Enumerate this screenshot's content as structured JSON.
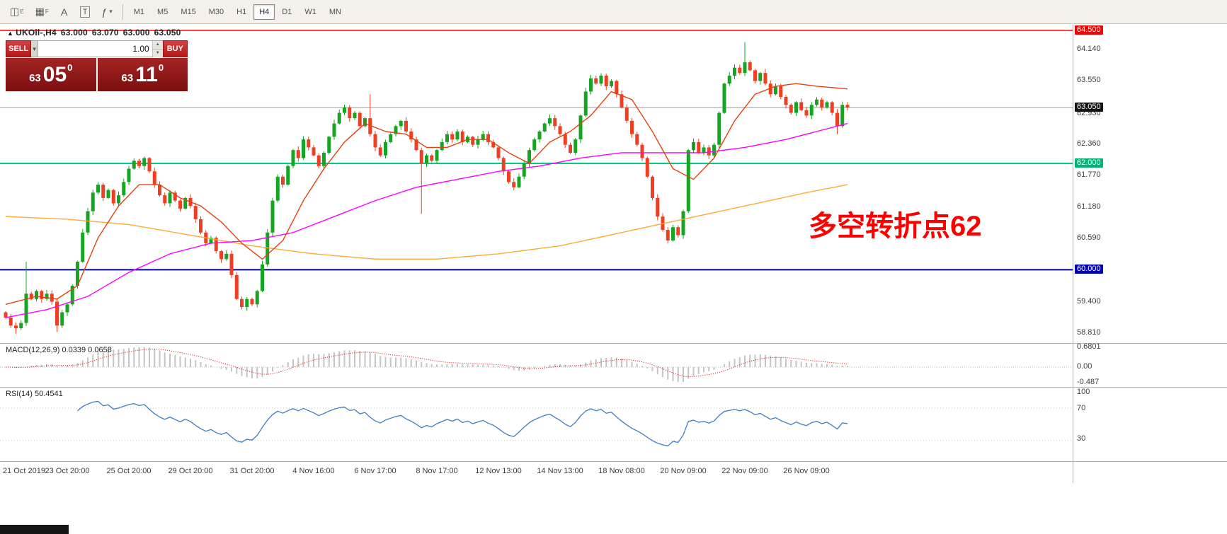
{
  "toolbar": {
    "tools": [
      {
        "name": "chart-window-icon",
        "glyph": "◫",
        "sub": "E"
      },
      {
        "name": "chart-grid-icon",
        "glyph": "▦",
        "sub": "F"
      },
      {
        "name": "text-label-tool-icon",
        "glyph": "A"
      },
      {
        "name": "text-box-tool-icon",
        "glyph": "T",
        "boxed": true
      },
      {
        "name": "indicators-menu-icon",
        "glyph": "ƒ",
        "arrow": "▾"
      }
    ],
    "timeframes": [
      "M1",
      "M5",
      "M15",
      "M30",
      "H1",
      "H4",
      "D1",
      "W1",
      "MN"
    ],
    "active_timeframe": "H4"
  },
  "chart_header": {
    "direction_glyph": "▲",
    "symbol": "UKOil-,H4",
    "open": "63.000",
    "high": "63.070",
    "low": "63.000",
    "close": "63.050"
  },
  "trade_panel": {
    "sell_label": "SELL",
    "buy_label": "BUY",
    "lot": "1.00",
    "dropdown_glyph": "▼",
    "spin_up": "▲",
    "spin_down": "▼",
    "bid": {
      "prefix": "63",
      "big": "05",
      "sup": "0"
    },
    "ask": {
      "prefix": "63",
      "big": "11",
      "sup": "0"
    }
  },
  "annotation": {
    "text": "多空转折点62",
    "color": "#ff0000"
  },
  "price_scale": [
    {
      "text": "64.140",
      "price": 64.14
    },
    {
      "text": "63.550",
      "price": 63.55
    },
    {
      "text": "62.930",
      "price": 62.93
    },
    {
      "text": "62.360",
      "price": 62.36
    },
    {
      "text": "61.770",
      "price": 61.77
    },
    {
      "text": "61.180",
      "price": 61.18
    },
    {
      "text": "60.590",
      "price": 60.59
    },
    {
      "text": "59.400",
      "price": 59.4
    },
    {
      "text": "58.810",
      "price": 58.81
    },
    {
      "text": "64.500",
      "price": 64.5,
      "badge": "#f00000"
    },
    {
      "text": "63.050",
      "price": 63.05,
      "badge": "#141414"
    },
    {
      "text": "62.000",
      "price": 62.0,
      "badge": "#00b478"
    },
    {
      "text": "60.000",
      "price": 60.0,
      "badge": "#0000bb"
    }
  ],
  "indicators": {
    "macd": {
      "label": "MACD(12,26,9) 0.0339 0.0658",
      "scale": [
        "0.6801",
        "0.00",
        "-0.487"
      ]
    },
    "rsi": {
      "label": "RSI(14) 50.4541",
      "scale": [
        "100",
        "70",
        "30"
      ],
      "levels": [
        70,
        30
      ]
    }
  },
  "time_axis": [
    "21 Oct 2019",
    "23 Oct 20:00",
    "25 Oct 20:00",
    "29 Oct 20:00",
    "31 Oct 20:00",
    "4 Nov 16:00",
    "6 Nov 17:00",
    "8 Nov 17:00",
    "12 Nov 13:00",
    "14 Nov 13:00",
    "18 Nov 08:00",
    "20 Nov 09:00",
    "22 Nov 09:00",
    "26 Nov 09:00"
  ],
  "chart_data": {
    "type": "candlestick",
    "symbol": "UKOil-",
    "timeframe": "H4",
    "ylim": [
      58.6,
      64.62
    ],
    "up_color": "#16a523",
    "down_color": "#ee3f23",
    "first_open": 59.2,
    "closes": [
      59.1,
      58.95,
      58.9,
      59.0,
      59.55,
      59.45,
      59.6,
      59.45,
      59.55,
      59.4,
      58.95,
      59.2,
      59.35,
      59.7,
      60.15,
      60.7,
      61.1,
      61.45,
      61.6,
      61.35,
      61.5,
      61.25,
      61.4,
      61.65,
      61.9,
      62.05,
      61.95,
      62.1,
      61.85,
      61.6,
      61.4,
      61.25,
      61.45,
      61.3,
      61.15,
      61.35,
      61.2,
      60.95,
      60.7,
      60.5,
      60.6,
      60.35,
      60.2,
      60.3,
      59.9,
      59.45,
      59.3,
      59.45,
      59.35,
      59.6,
      60.1,
      60.7,
      61.3,
      61.75,
      61.6,
      61.95,
      62.25,
      62.1,
      62.45,
      62.3,
      62.15,
      61.95,
      62.2,
      62.5,
      62.75,
      62.95,
      63.05,
      62.85,
      62.95,
      62.7,
      62.85,
      62.55,
      62.3,
      62.15,
      62.4,
      62.55,
      62.7,
      62.8,
      62.6,
      62.45,
      62.25,
      62.0,
      62.15,
      62.05,
      62.25,
      62.4,
      62.55,
      62.45,
      62.6,
      62.4,
      62.5,
      62.35,
      62.45,
      62.55,
      62.4,
      62.3,
      62.1,
      61.85,
      61.65,
      61.55,
      61.75,
      62.0,
      62.25,
      62.45,
      62.6,
      62.75,
      62.85,
      62.7,
      62.55,
      62.35,
      62.2,
      62.45,
      62.9,
      63.35,
      63.6,
      63.5,
      63.65,
      63.45,
      63.55,
      63.3,
      63.05,
      62.8,
      62.55,
      62.35,
      62.1,
      61.75,
      61.35,
      61.0,
      60.75,
      60.55,
      60.8,
      60.65,
      61.1,
      62.25,
      62.4,
      62.2,
      62.3,
      62.15,
      62.35,
      62.95,
      63.5,
      63.65,
      63.8,
      63.7,
      63.9,
      63.75,
      63.55,
      63.7,
      63.5,
      63.3,
      63.45,
      63.25,
      63.1,
      62.95,
      63.15,
      63.0,
      62.9,
      63.1,
      63.2,
      63.05,
      63.15,
      62.95,
      62.7,
      63.1,
      63.05
    ],
    "wick_overrides": {
      "2": {
        "l": 58.8
      },
      "4": {
        "h": 60.15
      },
      "10": {
        "l": 58.83
      },
      "71": {
        "h": 63.3
      },
      "81": {
        "l": 61.05
      },
      "144": {
        "h": 64.28
      },
      "162": {
        "l": 62.55
      }
    },
    "levels": [
      {
        "price": 64.5,
        "color": "#ff0000",
        "width": 1.6
      },
      {
        "price": 63.05,
        "color": "#9a9a9a",
        "width": 1
      },
      {
        "price": 62.0,
        "color": "#00cc88",
        "width": 2
      },
      {
        "price": 60.0,
        "color": "#0000bb",
        "width": 2
      }
    ],
    "ma_fast": {
      "color": "#e6400e",
      "points": [
        [
          0,
          59.35
        ],
        [
          6,
          59.5
        ],
        [
          10,
          59.45
        ],
        [
          14,
          59.7
        ],
        [
          18,
          60.6
        ],
        [
          22,
          61.2
        ],
        [
          26,
          61.6
        ],
        [
          30,
          61.6
        ],
        [
          34,
          61.35
        ],
        [
          38,
          61.2
        ],
        [
          42,
          60.9
        ],
        [
          46,
          60.5
        ],
        [
          50,
          60.2
        ],
        [
          54,
          60.55
        ],
        [
          58,
          61.3
        ],
        [
          62,
          61.9
        ],
        [
          66,
          62.4
        ],
        [
          70,
          62.75
        ],
        [
          74,
          62.6
        ],
        [
          78,
          62.55
        ],
        [
          82,
          62.3
        ],
        [
          86,
          62.3
        ],
        [
          90,
          62.45
        ],
        [
          94,
          62.45
        ],
        [
          98,
          62.2
        ],
        [
          102,
          62.0
        ],
        [
          106,
          62.4
        ],
        [
          110,
          62.6
        ],
        [
          114,
          62.9
        ],
        [
          118,
          63.35
        ],
        [
          122,
          63.2
        ],
        [
          126,
          62.6
        ],
        [
          130,
          61.9
        ],
        [
          134,
          61.7
        ],
        [
          138,
          62.1
        ],
        [
          142,
          62.8
        ],
        [
          146,
          63.3
        ],
        [
          150,
          63.45
        ],
        [
          154,
          63.5
        ],
        [
          158,
          63.45
        ],
        [
          164,
          63.4
        ]
      ]
    },
    "ma_mid": {
      "color": "#ff00ff",
      "points": [
        [
          0,
          59.1
        ],
        [
          8,
          59.25
        ],
        [
          16,
          59.5
        ],
        [
          24,
          59.95
        ],
        [
          32,
          60.3
        ],
        [
          40,
          60.5
        ],
        [
          48,
          60.55
        ],
        [
          56,
          60.7
        ],
        [
          64,
          61.0
        ],
        [
          72,
          61.3
        ],
        [
          80,
          61.55
        ],
        [
          88,
          61.7
        ],
        [
          96,
          61.85
        ],
        [
          104,
          61.95
        ],
        [
          112,
          62.1
        ],
        [
          120,
          62.2
        ],
        [
          128,
          62.2
        ],
        [
          136,
          62.2
        ],
        [
          144,
          62.3
        ],
        [
          152,
          62.45
        ],
        [
          158,
          62.6
        ],
        [
          164,
          62.75
        ]
      ]
    },
    "ma_slow": {
      "color": "#ffaa33",
      "points": [
        [
          0,
          61.0
        ],
        [
          12,
          60.95
        ],
        [
          24,
          60.85
        ],
        [
          36,
          60.65
        ],
        [
          48,
          60.45
        ],
        [
          60,
          60.3
        ],
        [
          72,
          60.2
        ],
        [
          84,
          60.2
        ],
        [
          96,
          60.3
        ],
        [
          108,
          60.45
        ],
        [
          120,
          60.7
        ],
        [
          132,
          60.95
        ],
        [
          144,
          61.2
        ],
        [
          156,
          61.45
        ],
        [
          164,
          61.6
        ]
      ]
    }
  }
}
